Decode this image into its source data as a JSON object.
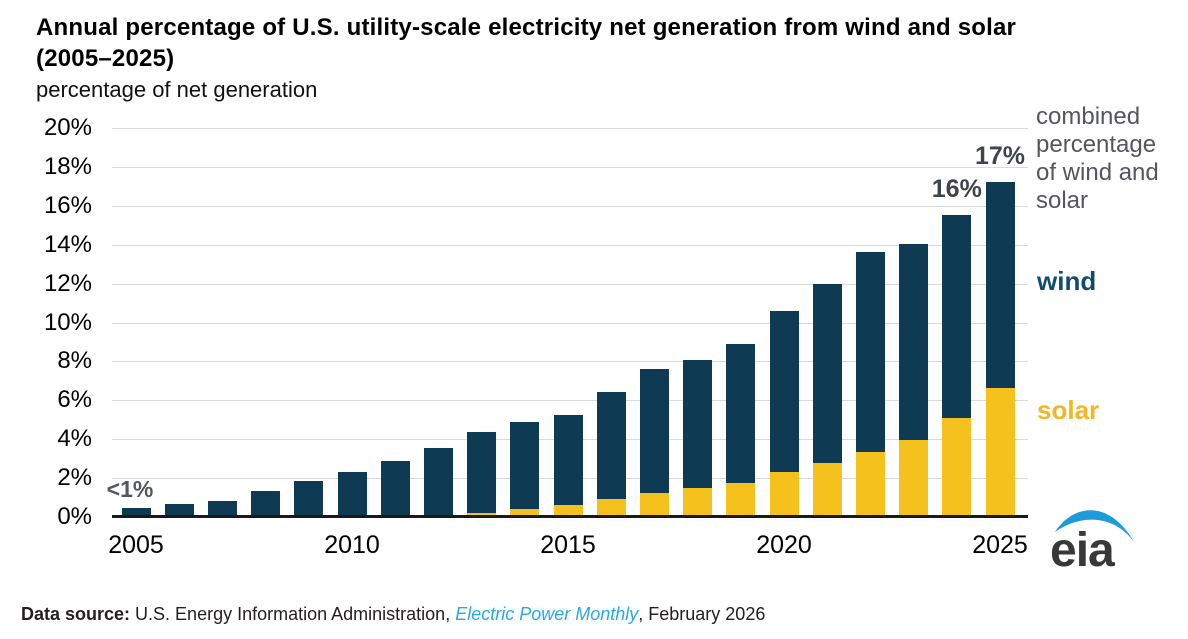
{
  "header": {
    "title_line1": "Annual percentage of U.S. utility-scale electricity net generation from wind and solar",
    "title_line2": "(2005–2025)",
    "subtitle": "percentage of net generation"
  },
  "chart_data": {
    "type": "bar",
    "stacked": true,
    "title": "Annual percentage of U.S. utility-scale electricity net generation from wind and solar (2005–2025)",
    "ylabel": "percentage of net generation",
    "xlabel": "",
    "ylim": [
      0,
      20
    ],
    "ytick_step": 2,
    "ytick_labels": [
      "0%",
      "2%",
      "4%",
      "6%",
      "8%",
      "10%",
      "12%",
      "14%",
      "16%",
      "18%",
      "20%"
    ],
    "grid": true,
    "legend_position": "right",
    "categories": [
      "2005",
      "2006",
      "2007",
      "2008",
      "2009",
      "2010",
      "2011",
      "2012",
      "2013",
      "2014",
      "2015",
      "2016",
      "2017",
      "2018",
      "2019",
      "2020",
      "2021",
      "2022",
      "2023",
      "2024",
      "2025"
    ],
    "xtick_labels": [
      "2005",
      "2010",
      "2015",
      "2020",
      "2025"
    ],
    "series": [
      {
        "name": "solar",
        "values": [
          0.01,
          0.01,
          0.01,
          0.02,
          0.02,
          0.03,
          0.05,
          0.11,
          0.23,
          0.43,
          0.64,
          0.9,
          1.25,
          1.5,
          1.75,
          2.3,
          2.8,
          3.35,
          3.95,
          5.1,
          6.65
        ]
      },
      {
        "name": "wind",
        "values": [
          0.43,
          0.64,
          0.79,
          1.33,
          1.83,
          2.27,
          2.85,
          3.44,
          4.14,
          4.44,
          4.63,
          5.53,
          6.35,
          6.55,
          7.15,
          8.3,
          9.2,
          10.25,
          10.1,
          10.45,
          10.55
        ]
      }
    ],
    "annotations": [
      {
        "text": "<1%",
        "year": "2005",
        "style": "small"
      },
      {
        "text": "16%",
        "year": "2024",
        "style": "big"
      },
      {
        "text": "17%",
        "year": "2025",
        "style": "big"
      }
    ],
    "side_labels": {
      "combined": "combined percentage of wind and solar",
      "wind": "wind",
      "solar": "solar"
    }
  },
  "colors": {
    "wind_bar": "#0e3a53",
    "solar_bar": "#f5c21d",
    "wind_label": "#124b70",
    "solar_label": "#f2b722",
    "combined_gray": "#54565b",
    "grid": "#d9d9d9",
    "axis": "#1a1a1a",
    "annotation_dark": "#3e454d",
    "annotation_gray": "#54575b",
    "link_blue": "#29a9e1",
    "logo_blue": "#1e9bd8",
    "logo_text": "#383838"
  },
  "footer": {
    "prefix": "Data source:",
    "text1": " U.S. Energy Information Administration, ",
    "link": "Electric Power Monthly",
    "text2": ", February 2026"
  },
  "logo": {
    "text": "eia"
  }
}
